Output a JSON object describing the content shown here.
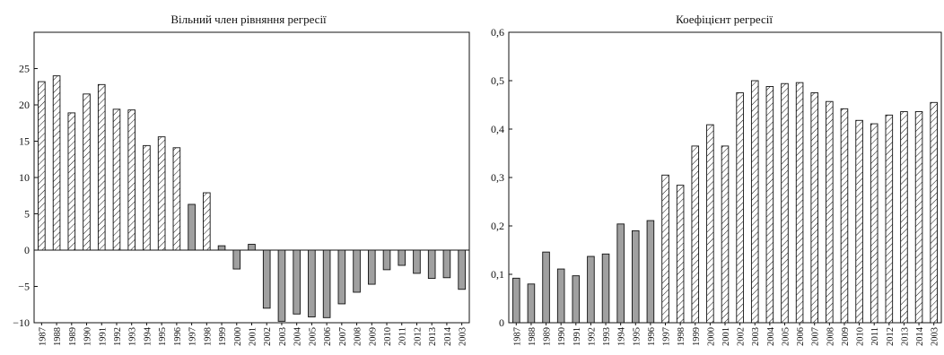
{
  "chart_data": [
    {
      "type": "bar",
      "title": "Вільний член рівняння регресії",
      "xlabel": "",
      "ylabel": "",
      "categories": [
        "1987",
        "1988",
        "1989",
        "1990",
        "1991",
        "1992",
        "1993",
        "1994",
        "1995",
        "1996",
        "1997",
        "1998",
        "1999",
        "2000",
        "2001",
        "2002",
        "2003",
        "2004",
        "2005",
        "2006",
        "2007",
        "2008",
        "2009",
        "2010",
        "2011",
        "2012",
        "2013",
        "2014",
        "2003"
      ],
      "values": [
        23.2,
        24.0,
        18.9,
        21.5,
        22.8,
        19.4,
        19.3,
        14.4,
        15.6,
        14.1,
        6.3,
        7.9,
        0.6,
        -2.6,
        0.8,
        -8.0,
        -9.8,
        -8.8,
        -9.2,
        -9.3,
        -7.4,
        -5.8,
        -4.7,
        -2.7,
        -2.1,
        -3.2,
        -3.9,
        -3.8,
        -5.4
      ],
      "pattern": [
        "hatched",
        "hatched",
        "hatched",
        "hatched",
        "hatched",
        "hatched",
        "hatched",
        "hatched",
        "hatched",
        "hatched",
        "solid",
        "hatched",
        "solid",
        "solid",
        "solid",
        "solid",
        "solid",
        "solid",
        "solid",
        "solid",
        "solid",
        "solid",
        "solid",
        "solid",
        "solid",
        "solid",
        "solid",
        "solid",
        "solid"
      ],
      "ylim": [
        -10,
        30
      ],
      "yticks": [
        -10,
        -5,
        0,
        5,
        10,
        15,
        20,
        25
      ],
      "ytick_labels": [
        "−10",
        "−5",
        "0",
        "5",
        "10",
        "15",
        "20",
        "25"
      ],
      "grid": false
    },
    {
      "type": "bar",
      "title": "Коефіцієнт регресії",
      "xlabel": "",
      "ylabel": "",
      "categories": [
        "1987",
        "1988",
        "1989",
        "1990",
        "1991",
        "1992",
        "1993",
        "1994",
        "1995",
        "1996",
        "1997",
        "1998",
        "1999",
        "2000",
        "2001",
        "2002",
        "2003",
        "2004",
        "2005",
        "2006",
        "2007",
        "2008",
        "2009",
        "2010",
        "2011",
        "2012",
        "2013",
        "2014",
        "2003"
      ],
      "values": [
        0.092,
        0.08,
        0.146,
        0.111,
        0.097,
        0.137,
        0.142,
        0.204,
        0.19,
        0.211,
        0.305,
        0.284,
        0.365,
        0.409,
        0.365,
        0.475,
        0.5,
        0.488,
        0.494,
        0.496,
        0.475,
        0.457,
        0.442,
        0.418,
        0.411,
        0.429,
        0.436,
        0.436,
        0.455
      ],
      "pattern": [
        "solid",
        "solid",
        "solid",
        "solid",
        "solid",
        "solid",
        "solid",
        "solid",
        "solid",
        "solid",
        "hatched",
        "hatched",
        "hatched",
        "hatched",
        "hatched",
        "hatched",
        "hatched",
        "hatched",
        "hatched",
        "hatched",
        "hatched",
        "hatched",
        "hatched",
        "hatched",
        "hatched",
        "hatched",
        "hatched",
        "hatched",
        "hatched"
      ],
      "ylim": [
        0,
        0.6
      ],
      "yticks": [
        0,
        0.1,
        0.2,
        0.3,
        0.4,
        0.5,
        0.6
      ],
      "ytick_labels": [
        "0",
        "0,1",
        "0,2",
        "0,3",
        "0,4",
        "0,5",
        "0,6"
      ],
      "grid": false
    }
  ],
  "colors": {
    "solid_bar": "#a0a0a0",
    "hatched_bar": "#ffffff",
    "stroke": "#111111"
  }
}
